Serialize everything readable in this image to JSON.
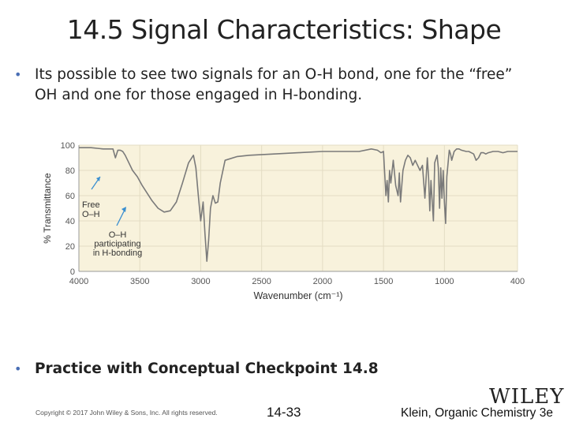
{
  "slide": {
    "title": "14.5 Signal Characteristics: Shape",
    "bullet1_line1": "Its possible to see two signals for an O-H bond, one for the “free”",
    "bullet1_line2": "OH and one for those engaged in H-bonding.",
    "bullet2": "Practice with Conceptual Checkpoint 14.8",
    "bullet_glyph": "•"
  },
  "footer": {
    "copyright": "Copyright © 2017 John Wiley & Sons, Inc. All rights reserved.",
    "page": "14-33",
    "publisher": "WILEY",
    "book": "Klein, Organic Chemistry 3e"
  },
  "chart_data": {
    "type": "line",
    "title": "",
    "xlabel": "Wavenumber (cm⁻¹)",
    "ylabel": "% Transmittance",
    "xlim": [
      4000,
      400
    ],
    "ylim": [
      0,
      100
    ],
    "x_ticks": [
      4000,
      3500,
      3000,
      2500,
      2000,
      1500,
      1000,
      400
    ],
    "y_ticks": [
      0,
      20,
      40,
      60,
      80,
      100
    ],
    "grid": true,
    "plot_background": "#f8f2dc",
    "line_color": "#7a7a7a",
    "annotation_color": "#3a8fd0",
    "series": [
      {
        "x": [
          4000,
          3900,
          3800,
          3720,
          3700,
          3680,
          3660,
          3640,
          3620,
          3600,
          3560,
          3520,
          3480,
          3440,
          3400,
          3350,
          3300,
          3250,
          3200,
          3150,
          3100,
          3060,
          3040,
          3020,
          3000,
          2980,
          2965,
          2950,
          2935,
          2920,
          2900,
          2880,
          2860,
          2840,
          2800,
          2700,
          2600,
          2400,
          2200,
          2000,
          1800,
          1700,
          1600,
          1550,
          1520,
          1500,
          1480,
          1470,
          1460,
          1450,
          1440,
          1420,
          1400,
          1380,
          1370,
          1360,
          1340,
          1320,
          1300,
          1280,
          1260,
          1240,
          1200,
          1180,
          1160,
          1140,
          1130,
          1120,
          1110,
          1100,
          1090,
          1080,
          1060,
          1050,
          1040,
          1030,
          1020,
          1010,
          1000,
          990,
          980,
          960,
          950,
          940,
          920,
          900,
          880,
          860,
          820,
          800,
          780,
          760,
          740,
          720,
          700,
          680,
          660,
          640,
          600,
          560,
          520,
          480,
          440,
          400
        ],
        "y": [
          98,
          98,
          97,
          97,
          90,
          96,
          96,
          95,
          92,
          88,
          80,
          75,
          68,
          62,
          56,
          50,
          47,
          48,
          55,
          70,
          86,
          92,
          82,
          60,
          40,
          55,
          30,
          8,
          25,
          50,
          60,
          54,
          55,
          70,
          88,
          91,
          92,
          93,
          94,
          95,
          95,
          95,
          97,
          96,
          94,
          95,
          60,
          72,
          55,
          80,
          70,
          88,
          68,
          60,
          78,
          55,
          80,
          88,
          92,
          90,
          84,
          88,
          80,
          84,
          58,
          90,
          74,
          48,
          72,
          55,
          40,
          86,
          92,
          82,
          50,
          82,
          58,
          80,
          55,
          38,
          75,
          96,
          93,
          88,
          95,
          97,
          97,
          96,
          95,
          95,
          94,
          93,
          88,
          90,
          94,
          94,
          93,
          94,
          95,
          95,
          94,
          95,
          95,
          95
        ]
      }
    ],
    "annotations": [
      {
        "lines": [
          "Free",
          "O–H"
        ]
      },
      {
        "lines": [
          "O–H",
          "participating",
          "in H-bonding"
        ]
      }
    ]
  }
}
